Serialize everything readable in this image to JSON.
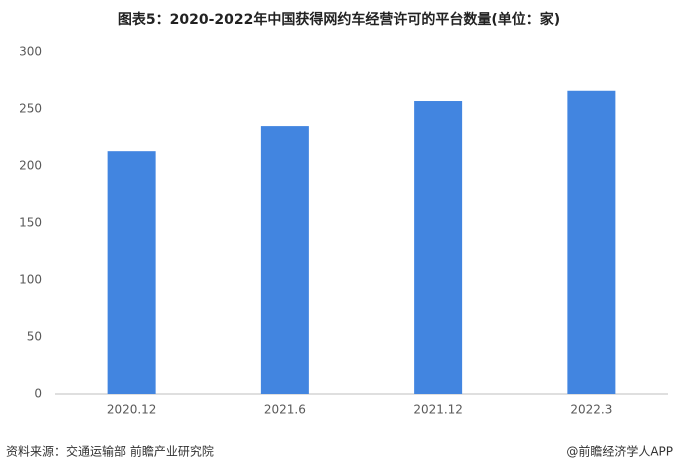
{
  "chart_data": {
    "type": "bar",
    "title": "图表5：2020-2022年中国获得网约车经营许可的平台数量(单位：家)",
    "categories": [
      "2020.12",
      "2021.6",
      "2021.12",
      "2022.3"
    ],
    "values": [
      213,
      235,
      257,
      266
    ],
    "color": "#4285e0",
    "ylim": [
      0,
      300
    ],
    "yticks": [
      0,
      50,
      100,
      150,
      200,
      250,
      300
    ],
    "grid": false,
    "source": "资料来源：交通运输部 前瞻产业研究院",
    "credit": "@前瞻经济学人APP"
  }
}
